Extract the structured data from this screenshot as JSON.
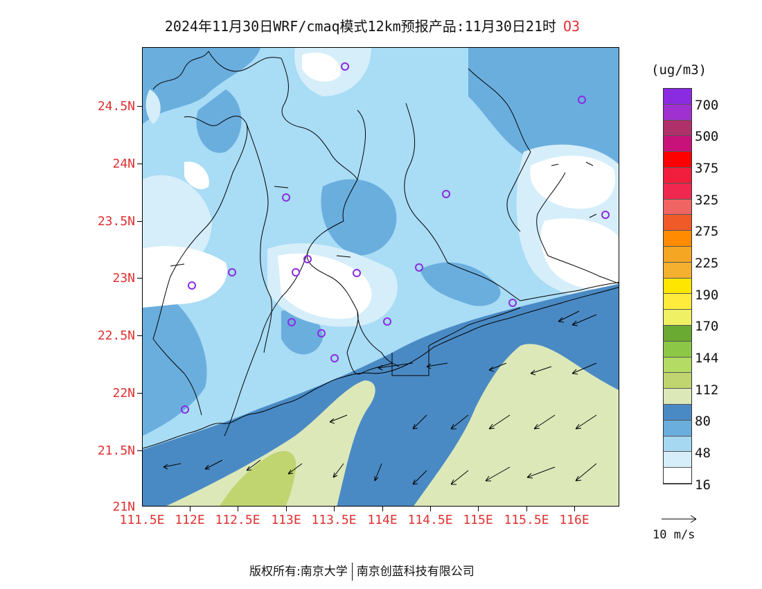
{
  "title": {
    "text": "2024年11月30日WRF/cmaq模式12km预报产品:11月30日21时",
    "species": "O3"
  },
  "axes": {
    "lat_labels": [
      "24.5N",
      "24N",
      "23.5N",
      "23N",
      "22.5N",
      "22N",
      "21.5N",
      "21N"
    ],
    "lon_labels": [
      "111.5E",
      "112E",
      "112.5E",
      "113E",
      "113.5E",
      "114E",
      "114.5E",
      "115E",
      "115.5E",
      "116E"
    ]
  },
  "colorbar": {
    "unit": "(ug/m3)",
    "colors": [
      "#8a2be2",
      "#a030d0",
      "#b0306a",
      "#c8127a",
      "#ff0000",
      "#f01e3c",
      "#f02850",
      "#f06464",
      "#f05a28",
      "#ff8c00",
      "#f5a623",
      "#f5b030",
      "#ffe600",
      "#ffeb3b",
      "#f0f064",
      "#6aaa32",
      "#8cc846",
      "#b4dc64",
      "#c0d470",
      "#dde8b9",
      "#4a8ac4",
      "#6aaede",
      "#a6d8f2",
      "#d6eefa",
      "#ffffff"
    ],
    "labels": [
      "700",
      "500",
      "375",
      "325",
      "275",
      "225",
      "190",
      "170",
      "144",
      "112",
      "80",
      "48",
      "16"
    ]
  },
  "wind_reference": {
    "label": "10 m/s"
  },
  "footer": {
    "left": "版权所有:南京大学",
    "right": "南京创蓝科技有限公司"
  }
}
